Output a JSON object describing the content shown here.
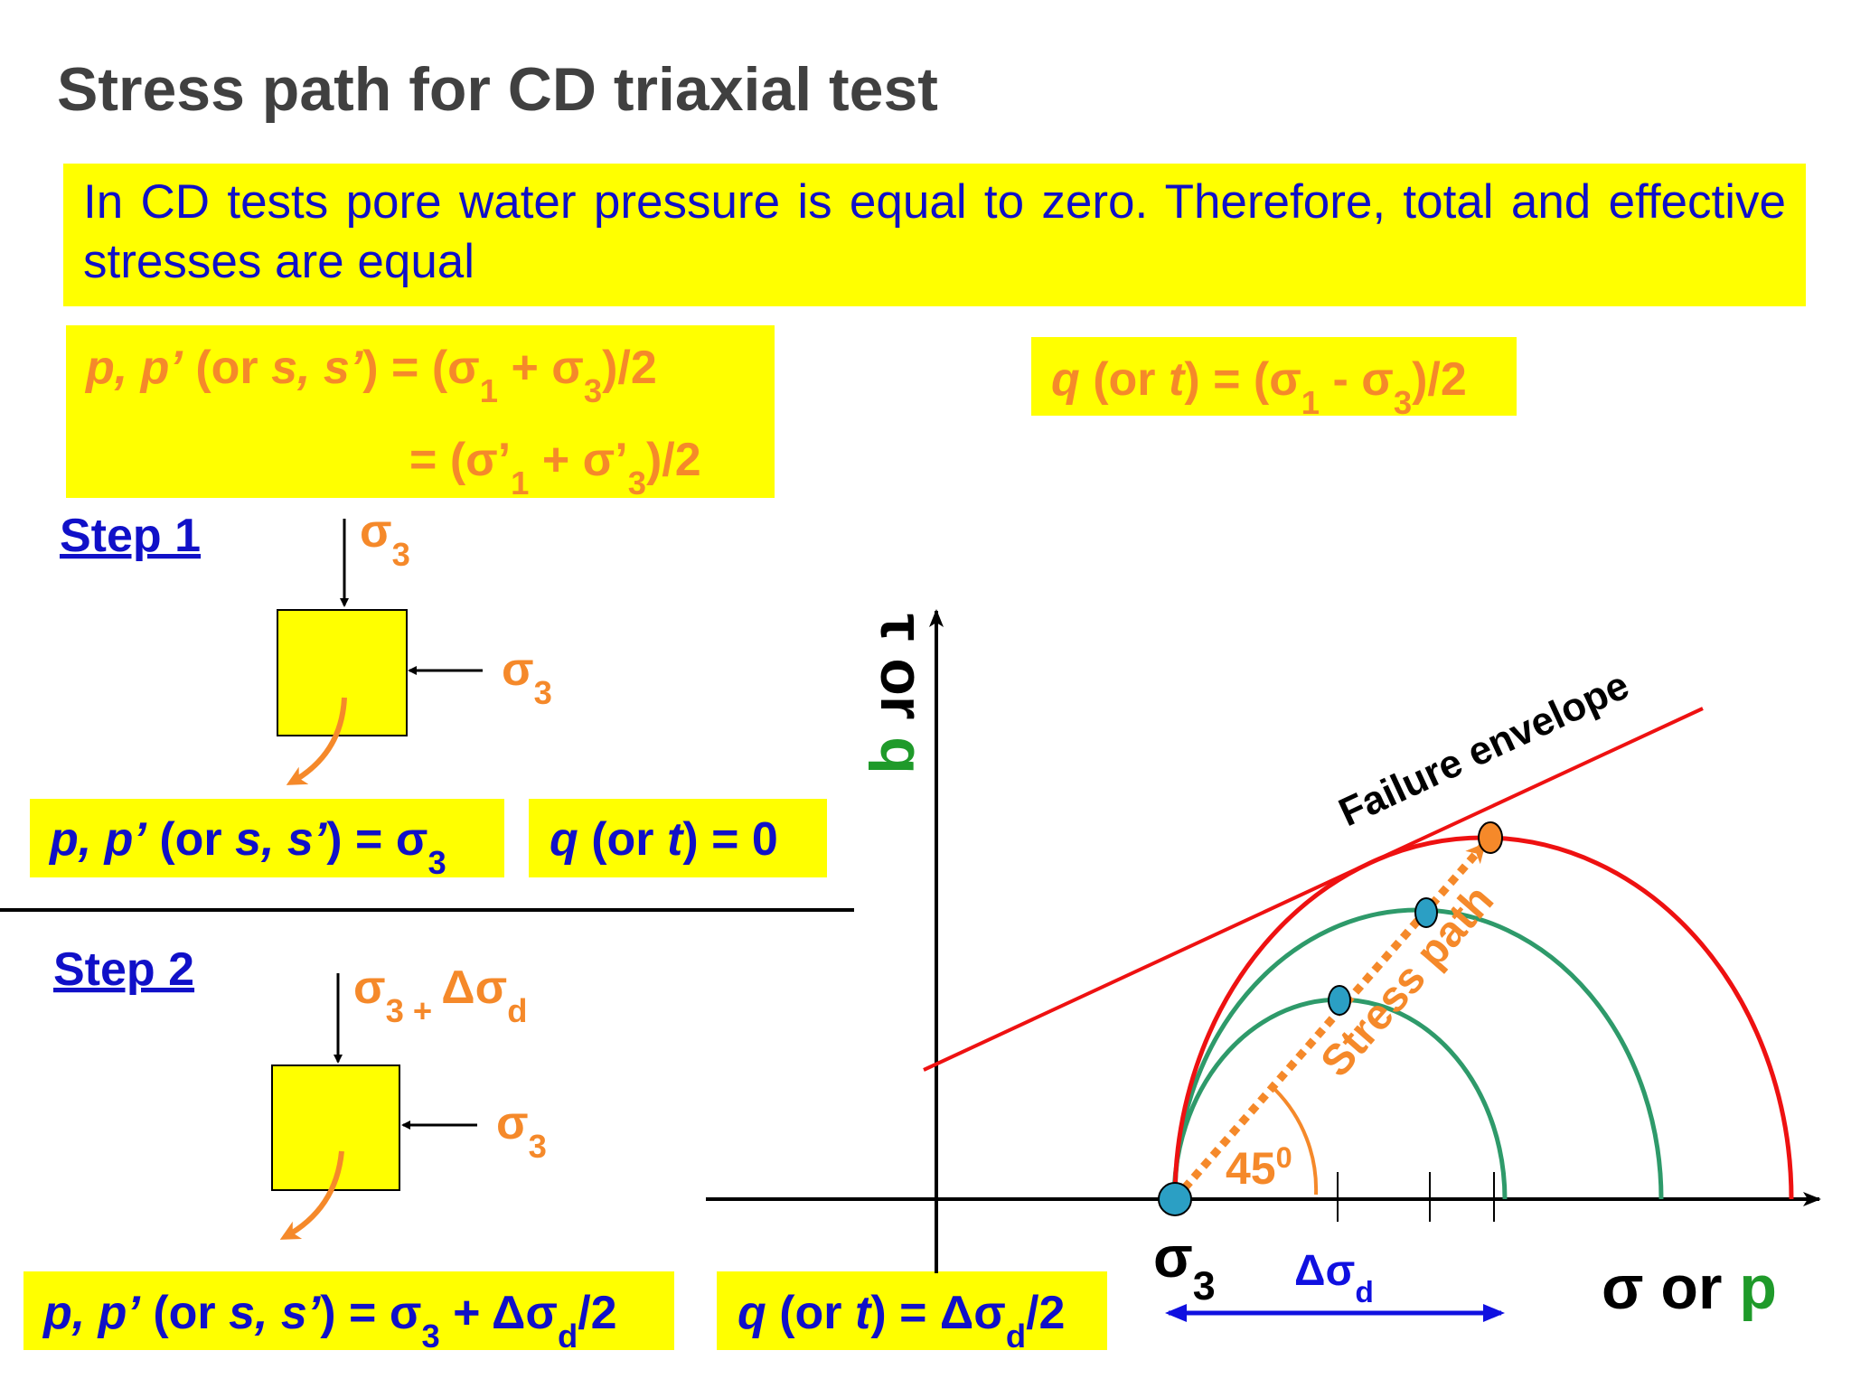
{
  "header": {
    "title": "Stress path for CD triaxial test"
  },
  "note": "In CD tests pore water pressure is equal to zero. Therefore, total and effective stresses are equal",
  "formulas": {
    "p_def": [
      "p, p’",
      " (or ",
      "s, s’",
      ") = (σ",
      "1",
      " + σ",
      "3",
      ")/2"
    ],
    "p_def_eff": [
      "= (σ’",
      "1",
      " + σ’",
      "3",
      ")/2"
    ],
    "q_def": [
      "q",
      " (or ",
      "t",
      ") = (σ",
      "1",
      " - σ",
      "3",
      ")/2"
    ]
  },
  "steps": [
    {
      "label": "Step 1",
      "top_load": [
        "σ",
        "3"
      ],
      "side_load": [
        "σ",
        "3"
      ],
      "p": [
        "p, p’",
        " (or ",
        "s, s’",
        ") = σ",
        "3"
      ],
      "q": [
        "q",
        " (or ",
        "t",
        ") = 0"
      ]
    },
    {
      "label": "Step 2",
      "top_load": [
        "σ",
        "3 + ",
        "Δσ",
        "d"
      ],
      "side_load": [
        "σ",
        "3"
      ],
      "p": [
        "p, p’",
        " (or ",
        "s, s’",
        ") = σ",
        "3",
        " + Δσ",
        "d",
        "/2"
      ],
      "q": [
        "q",
        " (or ",
        "t",
        ") = Δσ",
        "d",
        "/2"
      ]
    }
  ],
  "plot": {
    "y_label": [
      "τ or ",
      "q"
    ],
    "x_label": [
      "σ or ",
      "p"
    ],
    "envelope": "Failure envelope",
    "stress_path": "Stress path",
    "angle": [
      "45",
      "0"
    ],
    "sigma3": [
      "σ",
      "3"
    ],
    "delta": [
      "Δσ",
      "d"
    ]
  }
}
